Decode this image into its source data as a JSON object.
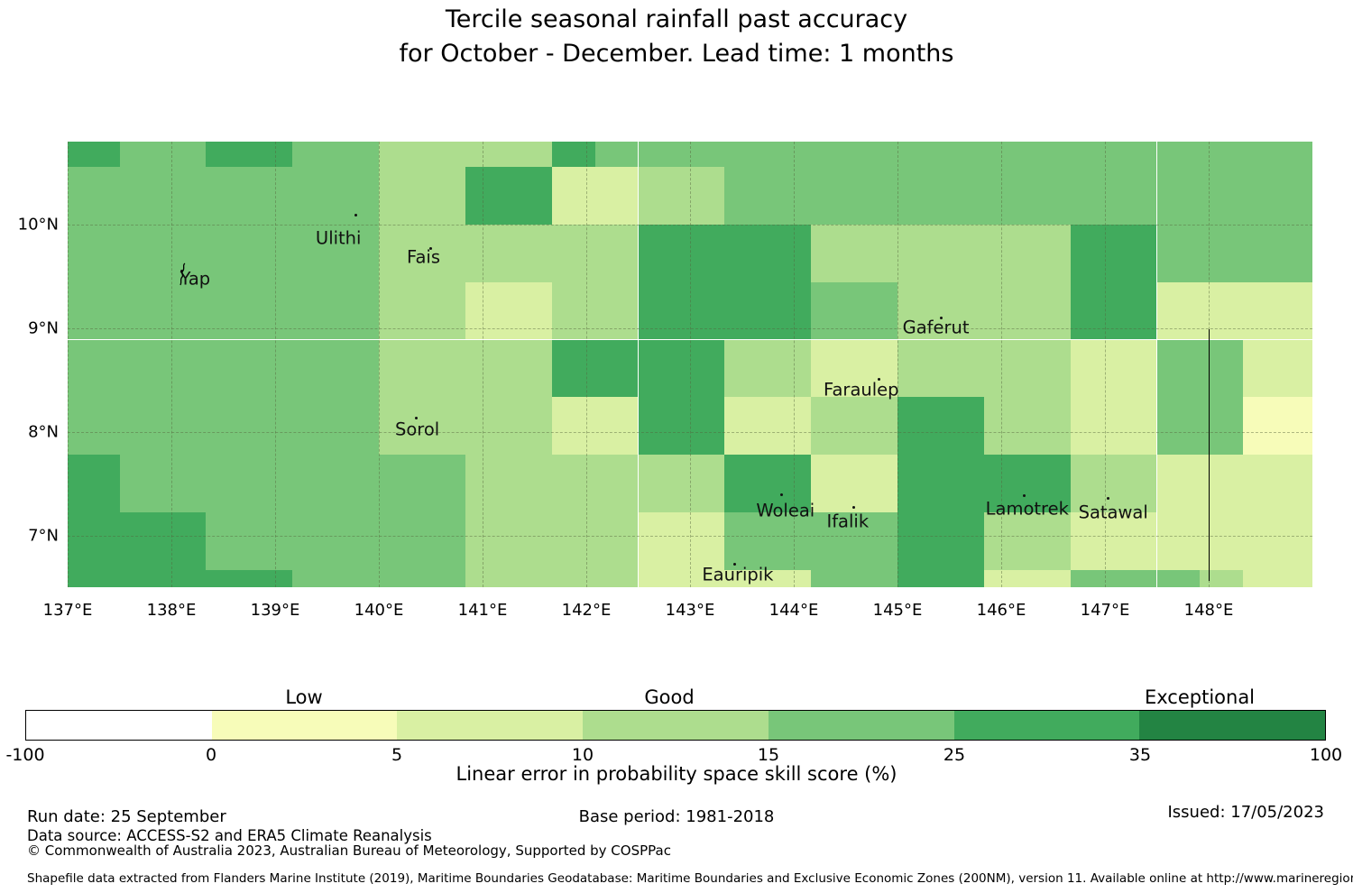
{
  "title": {
    "line1": "Tercile seasonal rainfall past accuracy",
    "line2": "for October - December. Lead time: 1 months"
  },
  "chart_data": {
    "type": "heatmap",
    "title": "Tercile seasonal rainfall past accuracy for October - December. Lead time: 1 months",
    "map_extent": {
      "lon_min": 137.0,
      "lon_max": 149.0,
      "lat_min": 6.5,
      "lat_max": 10.8
    },
    "grid_on": true,
    "col_edges_lon": [
      137.0,
      137.5,
      138.3333,
      139.1667,
      140.0,
      140.8333,
      141.6667,
      142.5,
      143.3333,
      144.1667,
      145.0,
      145.8333,
      146.6667,
      147.5,
      148.3333,
      149.0
    ],
    "row_edges_lat": [
      10.8,
      10.5556,
      10.0,
      9.4444,
      8.8889,
      8.3333,
      7.7778,
      7.2222,
      6.6667,
      6.5
    ],
    "grid_color_bin_index": [
      [
        5,
        4,
        5,
        4,
        3,
        3,
        4,
        4,
        4,
        4,
        4,
        4,
        4,
        4,
        4
      ],
      [
        4,
        4,
        4,
        4,
        3,
        5,
        2,
        3,
        4,
        4,
        4,
        4,
        4,
        4,
        4
      ],
      [
        4,
        4,
        4,
        4,
        3,
        3,
        3,
        5,
        5,
        3,
        3,
        3,
        5,
        4,
        4
      ],
      [
        4,
        4,
        4,
        4,
        3,
        2,
        3,
        5,
        5,
        4,
        3,
        3,
        5,
        2,
        2
      ],
      [
        4,
        4,
        4,
        4,
        3,
        3,
        5,
        5,
        3,
        2,
        3,
        3,
        2,
        4,
        2
      ],
      [
        4,
        4,
        4,
        4,
        3,
        3,
        2,
        5,
        2,
        3,
        5,
        3,
        2,
        4,
        1
      ],
      [
        5,
        4,
        4,
        4,
        4,
        3,
        3,
        3,
        5,
        2,
        5,
        5,
        3,
        2,
        2
      ],
      [
        5,
        5,
        4,
        4,
        4,
        3,
        3,
        2,
        4,
        4,
        5,
        3,
        2,
        2,
        2
      ],
      [
        5,
        5,
        5,
        4,
        4,
        3,
        3,
        2,
        2,
        4,
        5,
        2,
        4,
        4,
        2
      ]
    ],
    "cell_overrides": [
      {
        "row": 0,
        "lon0": 141.6667,
        "lon1": 142.0833,
        "bin": 5
      },
      {
        "row": 8,
        "lon0": 147.9167,
        "lon1": 148.3333,
        "bin": 3
      }
    ],
    "palette_bins": [
      {
        "from": -100,
        "to": 0,
        "color": "#ffffff"
      },
      {
        "from": 0,
        "to": 5,
        "color": "#f7fcb9"
      },
      {
        "from": 5,
        "to": 10,
        "color": "#d9f0a3"
      },
      {
        "from": 10,
        "to": 15,
        "color": "#addd8e"
      },
      {
        "from": 15,
        "to": 25,
        "color": "#78c679"
      },
      {
        "from": 25,
        "to": 35,
        "color": "#41ab5d"
      },
      {
        "from": 35,
        "to": 100,
        "color": "#238443"
      }
    ],
    "x_ticks": [
      {
        "lon": 137,
        "label": "137°E"
      },
      {
        "lon": 138,
        "label": "138°E"
      },
      {
        "lon": 139,
        "label": "139°E"
      },
      {
        "lon": 140,
        "label": "140°E"
      },
      {
        "lon": 141,
        "label": "141°E"
      },
      {
        "lon": 142,
        "label": "142°E"
      },
      {
        "lon": 143,
        "label": "143°E"
      },
      {
        "lon": 144,
        "label": "144°E"
      },
      {
        "lon": 145,
        "label": "145°E"
      },
      {
        "lon": 146,
        "label": "146°E"
      },
      {
        "lon": 147,
        "label": "147°E"
      },
      {
        "lon": 148,
        "label": "148°E"
      }
    ],
    "y_ticks": [
      {
        "lat": 10,
        "label": "10°N"
      },
      {
        "lat": 9,
        "label": "9°N"
      },
      {
        "lat": 8,
        "label": "8°N"
      },
      {
        "lat": 7,
        "label": "7°N"
      }
    ],
    "islands": [
      {
        "name": "Yap",
        "label_lon": 138.23,
        "label_lat": 9.48,
        "dot_lon": 138.1,
        "dot_lat": 9.55,
        "has_outline": true
      },
      {
        "name": "Ulithi",
        "label_lon": 139.61,
        "label_lat": 9.87,
        "dot_lon": 139.78,
        "dot_lat": 10.09
      },
      {
        "name": "Fais",
        "label_lon": 140.43,
        "label_lat": 9.69,
        "dot_lon": 140.5,
        "dot_lat": 9.77
      },
      {
        "name": "Sorol",
        "label_lon": 140.37,
        "label_lat": 8.02,
        "dot_lon": 140.36,
        "dot_lat": 8.13
      },
      {
        "name": "Gaferut",
        "label_lon": 145.37,
        "label_lat": 9.01,
        "dot_lon": 145.42,
        "dot_lat": 9.1
      },
      {
        "name": "Faraulep",
        "label_lon": 144.65,
        "label_lat": 8.41,
        "dot_lon": 144.82,
        "dot_lat": 8.51
      },
      {
        "name": "Woleai",
        "label_lon": 143.92,
        "label_lat": 7.24,
        "dot_lon": 143.88,
        "dot_lat": 7.39
      },
      {
        "name": "Ifalik",
        "label_lon": 144.52,
        "label_lat": 7.14,
        "dot_lon": 144.58,
        "dot_lat": 7.27
      },
      {
        "name": "Lamotrek",
        "label_lon": 146.25,
        "label_lat": 7.26,
        "dot_lon": 146.22,
        "dot_lat": 7.38
      },
      {
        "name": "Satawal",
        "label_lon": 147.08,
        "label_lat": 7.22,
        "dot_lon": 147.03,
        "dot_lat": 7.36
      },
      {
        "name": "Eauripik",
        "label_lon": 143.46,
        "label_lat": 6.62,
        "dot_lon": 143.43,
        "dot_lat": 6.72
      }
    ],
    "eez_boundary_line": {
      "lon": 148.0,
      "lat_from": 8.99,
      "lat_to": 6.56
    },
    "legend_position": "bottom"
  },
  "colorbar": {
    "tick_labels": [
      "-100",
      "0",
      "5",
      "10",
      "15",
      "25",
      "35",
      "100"
    ],
    "segment_colors": [
      "#ffffff",
      "#f7fcb9",
      "#d9f0a3",
      "#addd8e",
      "#78c679",
      "#41ab5d",
      "#238443"
    ],
    "categories": [
      "Low",
      "Good",
      "Exceptional"
    ],
    "axis_label": "Linear error in probability space skill score (%)"
  },
  "footer": {
    "run_date": "Run date: 25 September",
    "base_period": "Base period: 1981-2018",
    "issued": "Issued: 17/05/2023",
    "data_source": "Data source: ACCESS-S2 and ERA5 Climate Reanalysis",
    "copyright": "© Commonwealth of Australia 2023, Australian Bureau of Meteorology, Supported by COSPPac",
    "shapefile_note": "Shapefile data extracted from Flanders Marine Institute (2019), Maritime Boundaries Geodatabase: Maritime Boundaries and Exclusive Economic Zones (200NM), version 11. Available online at http://www.marineregions.org/."
  }
}
